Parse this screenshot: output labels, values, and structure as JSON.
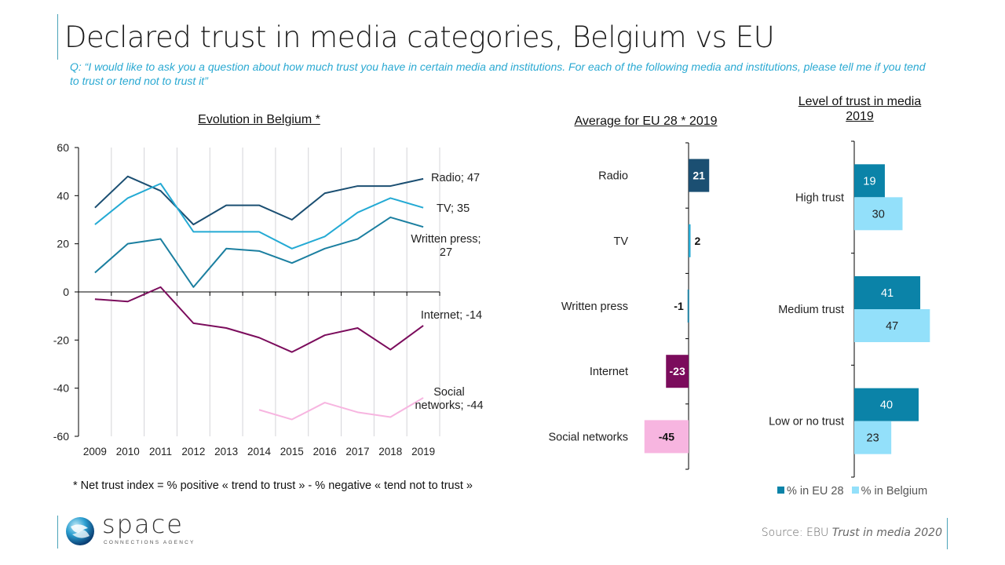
{
  "slide": {
    "title": "Declared trust in media categories, Belgium vs EU",
    "question": "Q: “I would like to ask you a question about how much trust you have in certain media and institutions. For each of the following media and institutions, please tell me if you tend to trust or tend not to trust it”",
    "footnote": "* Net trust index = % positive « trend to trust » - % negative « tend not to trust »",
    "source_prefix": "Source: EBU ",
    "source_italic": "Trust in media 2020",
    "logo": {
      "word": "space",
      "tagline": "CONNECTIONS AGENCY",
      "icon": "sphere-logo-icon"
    }
  },
  "colors": {
    "radio": "#1b4f72",
    "tv": "#24aad4",
    "written_press": "#1b7fa0",
    "internet": "#7b0c5c",
    "social_networks": "#f7b5e0",
    "eu28": "#0b83a8",
    "belgium": "#93e0fa",
    "accent": "#4ba3b8"
  },
  "chart_data": [
    {
      "type": "line",
      "title": "Evolution in Belgium *",
      "xlabel": "",
      "ylabel": "",
      "x": [
        "2009",
        "2010",
        "2011",
        "2012",
        "2013",
        "2014",
        "2015",
        "2016",
        "2017",
        "2018",
        "2019"
      ],
      "ylim": [
        -60,
        60
      ],
      "yticks": [
        60,
        40,
        20,
        0,
        -20,
        -40,
        -60
      ],
      "grid": "vertical",
      "series": [
        {
          "name": "Radio",
          "label": "Radio; 47",
          "values": [
            35,
            48,
            42,
            28,
            36,
            36,
            30,
            41,
            44,
            44,
            47
          ]
        },
        {
          "name": "TV",
          "label": "TV; 35",
          "values": [
            28,
            39,
            45,
            25,
            25,
            25,
            18,
            23,
            33,
            39,
            35
          ]
        },
        {
          "name": "Written press",
          "label": "Written press; 27",
          "values": [
            8,
            20,
            22,
            2,
            18,
            17,
            12,
            18,
            22,
            31,
            27
          ]
        },
        {
          "name": "Internet",
          "label": "Internet;  -14",
          "values": [
            -3,
            -4,
            2,
            -13,
            -15,
            -19,
            -25,
            -18,
            -15,
            -24,
            -14
          ]
        },
        {
          "name": "Social networks",
          "label": "Social networks; -44",
          "values": [
            null,
            null,
            null,
            null,
            null,
            -49,
            -53,
            -46,
            -50,
            -52,
            -44
          ]
        }
      ]
    },
    {
      "type": "bar",
      "orientation": "horizontal",
      "title": "Average for EU 28 * 2019",
      "categories": [
        "Radio",
        "TV",
        "Written press",
        "Internet",
        "Social networks"
      ],
      "values": [
        21,
        2,
        -1,
        -23,
        -45
      ],
      "labels": [
        "21",
        "2",
        "-1",
        "-23",
        "-45"
      ]
    },
    {
      "type": "bar",
      "orientation": "horizontal",
      "title": "Level of trust in media 2019",
      "categories": [
        "High trust",
        "Medium trust",
        "Low or no trust"
      ],
      "series": [
        {
          "name": "% in EU 28",
          "values": [
            19,
            41,
            40
          ]
        },
        {
          "name": "% in Belgium",
          "values": [
            30,
            47,
            23
          ]
        }
      ],
      "legend": "bottom"
    }
  ]
}
